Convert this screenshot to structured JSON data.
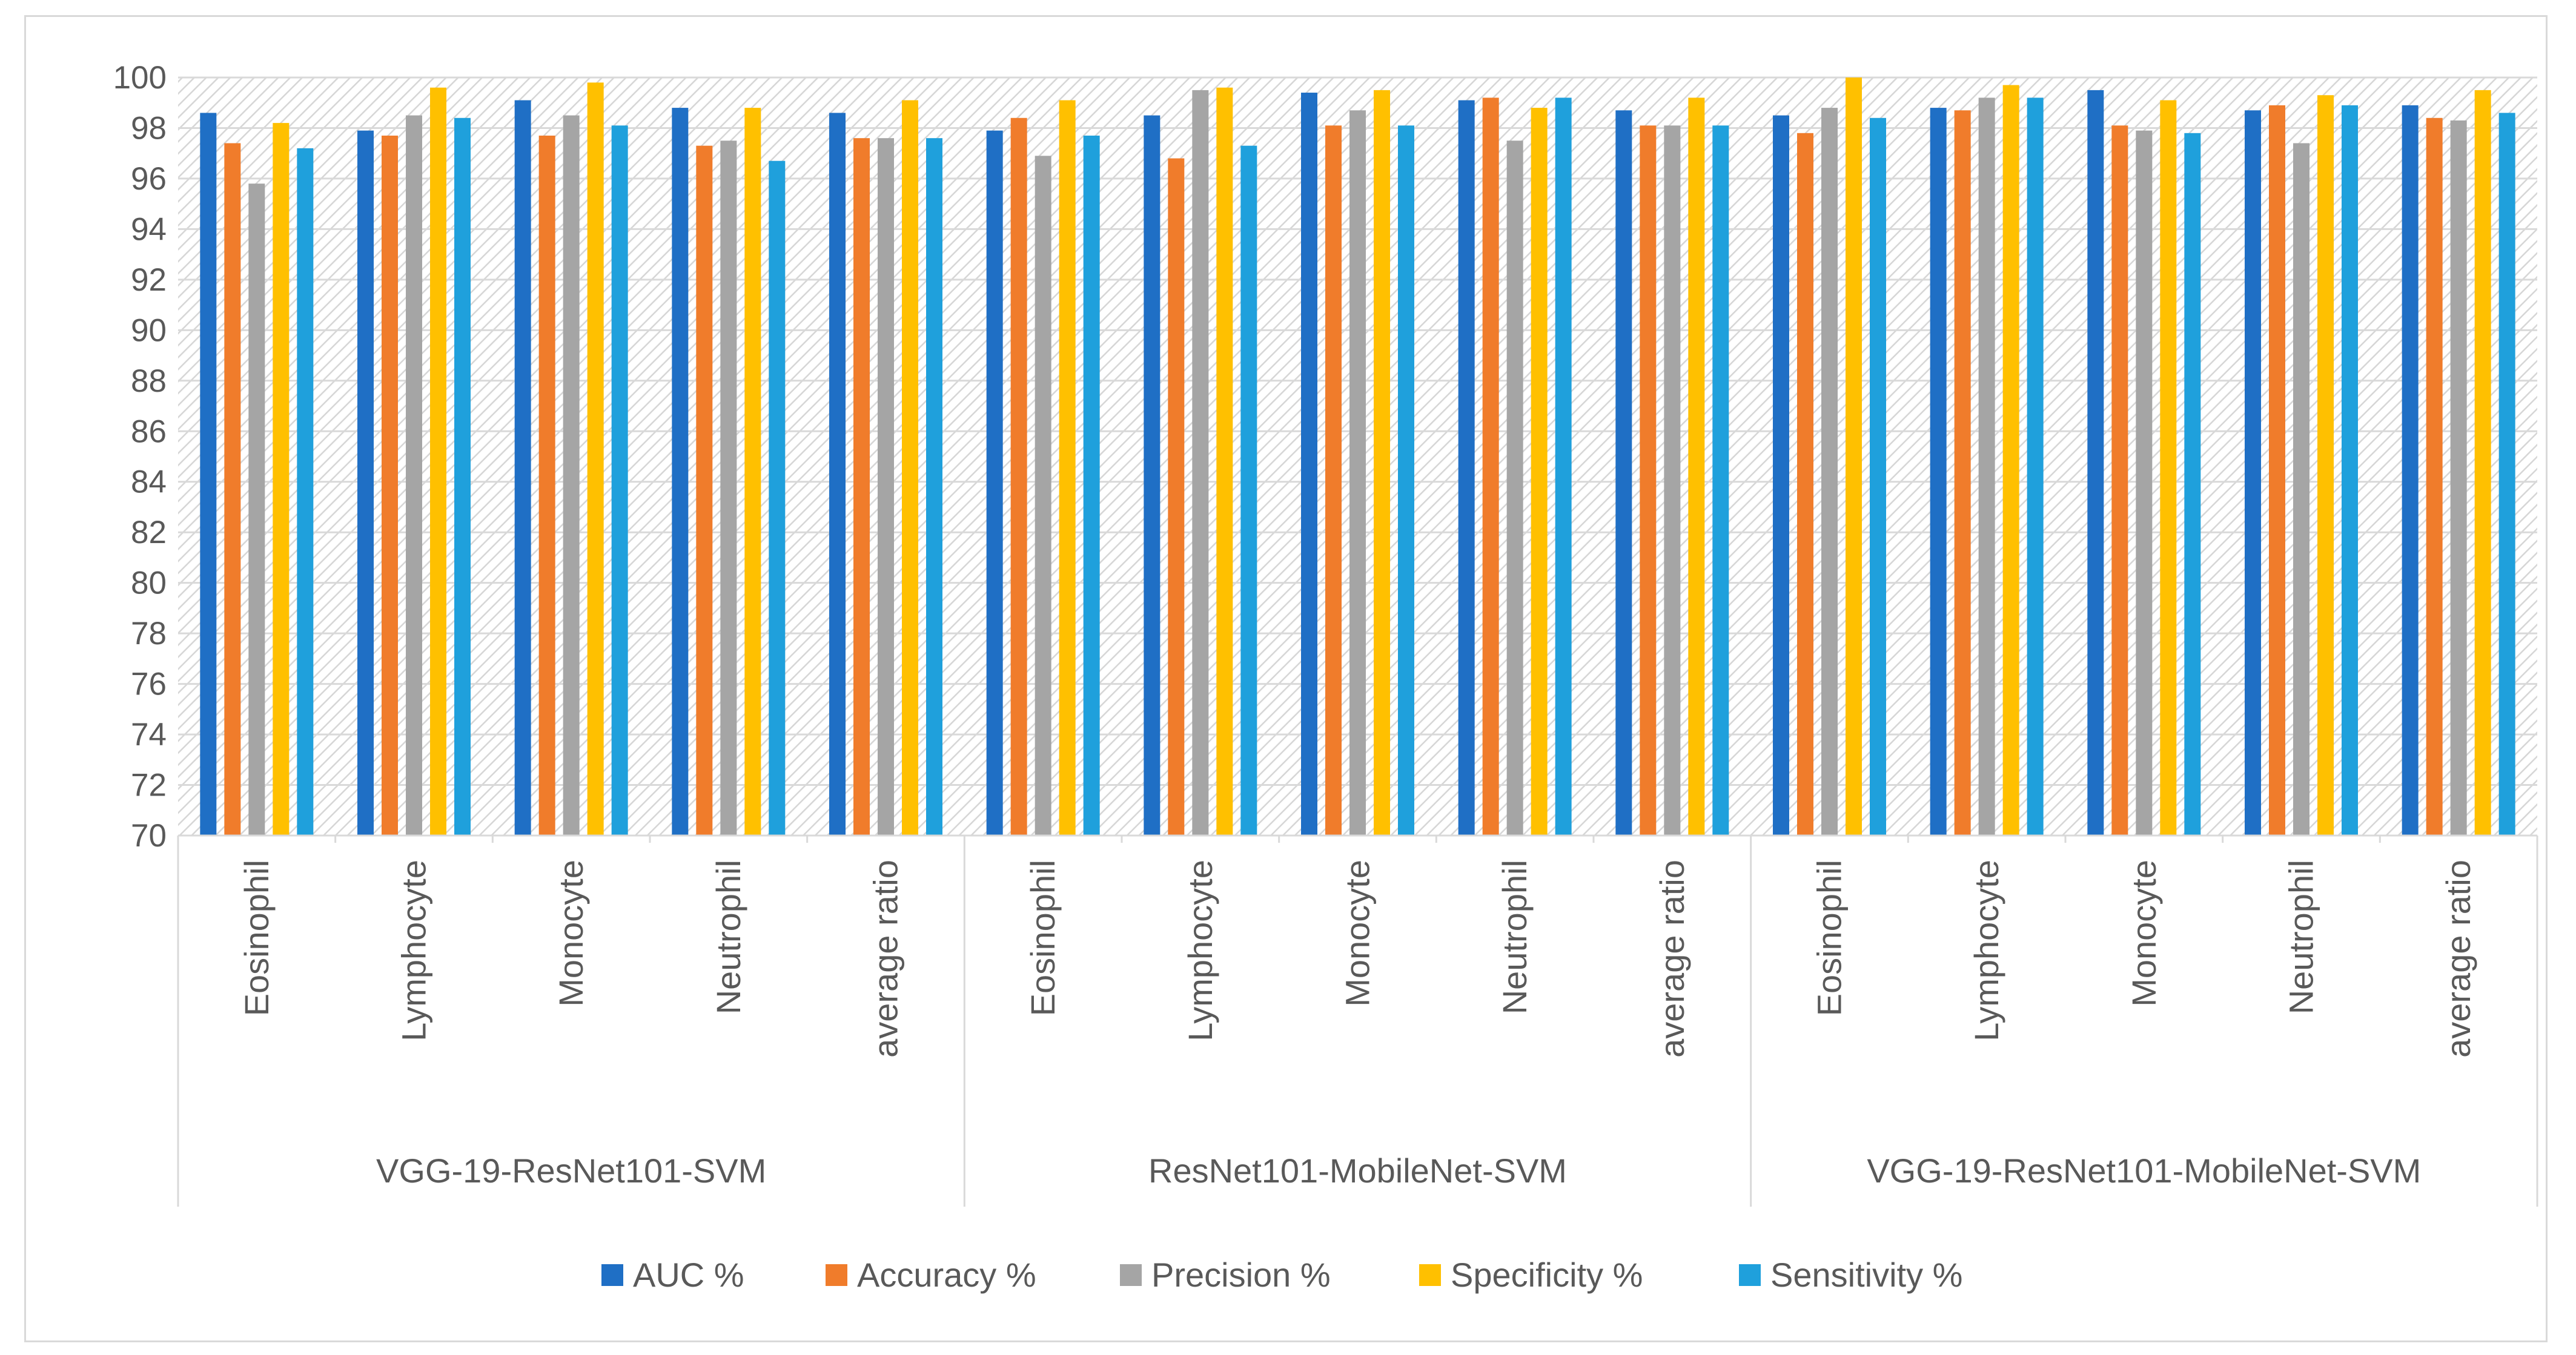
{
  "chart_data": {
    "type": "bar",
    "title": "",
    "xlabel": "",
    "ylabel": "",
    "ylim": [
      70,
      100
    ],
    "yticks": [
      70,
      72,
      74,
      76,
      78,
      80,
      82,
      84,
      86,
      88,
      90,
      92,
      94,
      96,
      98,
      100
    ],
    "grid": true,
    "legend_position": "bottom",
    "groups": [
      {
        "name": "VGG-19-ResNet101-SVM",
        "categories": [
          "Eosinophil",
          "Lymphocyte",
          "Monocyte",
          "Neutrophil",
          "average ratio"
        ]
      },
      {
        "name": "ResNet101-MobileNet-SVM",
        "categories": [
          "Eosinophil",
          "Lymphocyte",
          "Monocyte",
          "Neutrophil",
          "average ratio"
        ]
      },
      {
        "name": "VGG-19-ResNet101-MobileNet-SVM",
        "categories": [
          "Eosinophil",
          "Lymphocyte",
          "Monocyte",
          "Neutrophil",
          "average ratio"
        ]
      }
    ],
    "series": [
      {
        "name": "AUC %",
        "color": "#1f6fc5",
        "values": [
          98.6,
          97.9,
          99.1,
          98.8,
          98.6,
          97.9,
          98.5,
          99.4,
          99.1,
          98.7,
          98.5,
          98.8,
          99.5,
          98.7,
          98.9
        ]
      },
      {
        "name": "Accuracy %",
        "color": "#f07c2b",
        "values": [
          97.4,
          97.7,
          97.7,
          97.3,
          97.6,
          98.4,
          96.8,
          98.1,
          99.2,
          98.1,
          97.8,
          98.7,
          98.1,
          98.9,
          98.4
        ]
      },
      {
        "name": "Precision %",
        "color": "#a5a5a5",
        "values": [
          95.8,
          98.5,
          98.5,
          97.5,
          97.6,
          96.9,
          99.5,
          98.7,
          97.5,
          98.1,
          98.8,
          99.2,
          97.9,
          97.4,
          98.3
        ]
      },
      {
        "name": "Specificity %",
        "color": "#ffc000",
        "values": [
          98.2,
          99.6,
          99.8,
          98.8,
          99.1,
          99.1,
          99.6,
          99.5,
          98.8,
          99.2,
          100,
          99.7,
          99.1,
          99.3,
          99.5
        ]
      },
      {
        "name": "Sensitivity %",
        "color": "#1fa0dc",
        "values": [
          97.2,
          98.4,
          98.1,
          96.7,
          97.6,
          97.7,
          97.3,
          98.1,
          99.2,
          98.1,
          98.4,
          99.2,
          97.8,
          98.9,
          98.6
        ]
      }
    ]
  }
}
